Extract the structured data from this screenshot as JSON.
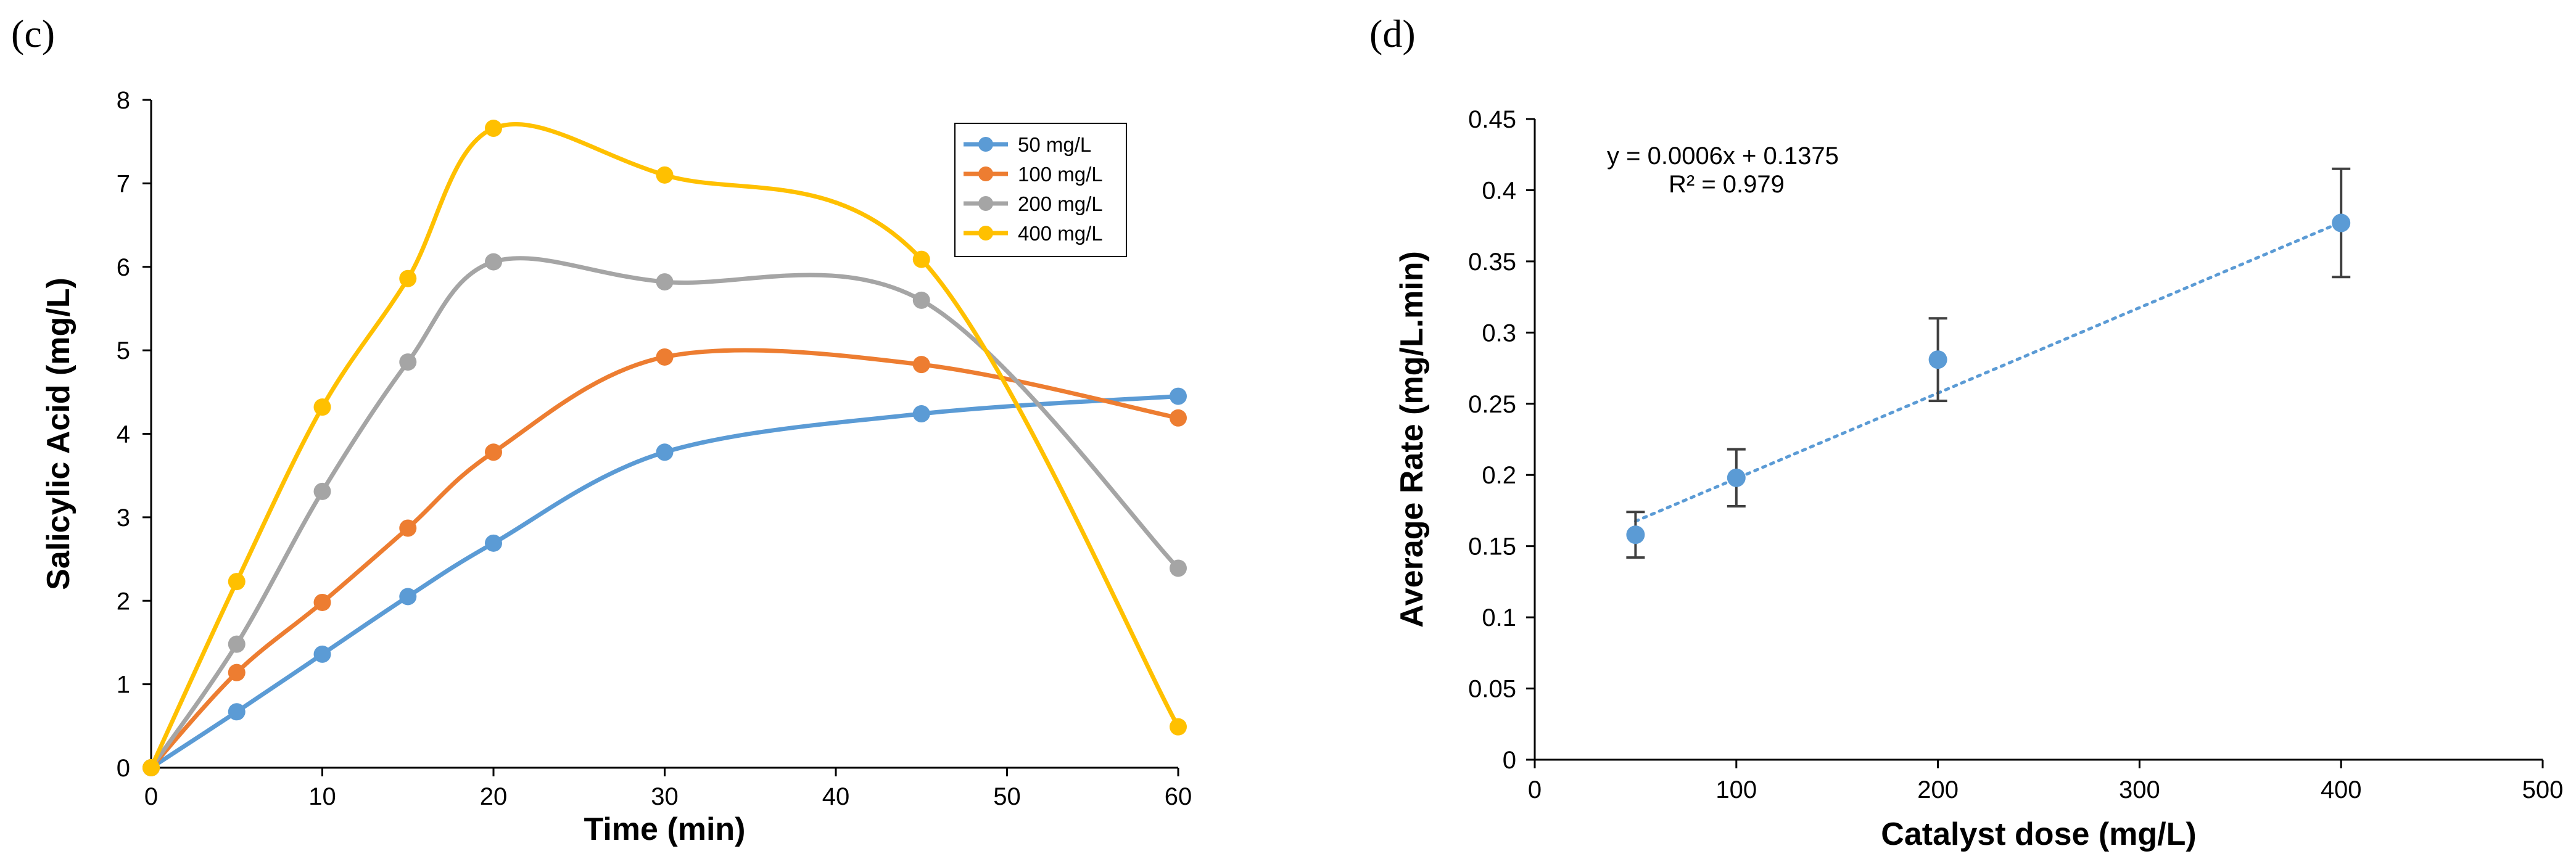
{
  "panels": {
    "c": "(c)",
    "d": "(d)"
  },
  "chart_data": [
    {
      "type": "line",
      "title": "",
      "xlabel": "Time (min)",
      "ylabel": "Salicylic Acid (mg/L)",
      "xlim": [
        0,
        60
      ],
      "ylim": [
        0,
        8
      ],
      "xticks": [
        0,
        10,
        20,
        30,
        40,
        50,
        60
      ],
      "yticks": [
        0,
        1,
        2,
        3,
        4,
        5,
        6,
        7,
        8
      ],
      "x": [
        0,
        5,
        10,
        15,
        20,
        30,
        45,
        60
      ],
      "legend_position": "top-right",
      "series": [
        {
          "name": "50 mg/L",
          "color": "#5B9BD5",
          "values": [
            0,
            0.67,
            1.36,
            2.05,
            2.69,
            3.78,
            4.24,
            4.45
          ]
        },
        {
          "name": "100 mg/L",
          "color": "#ED7D31",
          "values": [
            0,
            1.14,
            1.98,
            2.87,
            3.78,
            4.92,
            4.83,
            4.19
          ]
        },
        {
          "name": "200 mg/L",
          "color": "#A5A5A5",
          "values": [
            0,
            1.48,
            3.31,
            4.86,
            6.06,
            5.82,
            5.6,
            2.39
          ]
        },
        {
          "name": "400 mg/L",
          "color": "#FFC000",
          "values": [
            0,
            2.23,
            4.32,
            5.86,
            7.66,
            7.1,
            6.09,
            0.49
          ]
        }
      ]
    },
    {
      "type": "scatter",
      "title": "",
      "xlabel": "Catalyst dose (mg/L)",
      "ylabel": "Average Rate (mg/L.min)",
      "xlim": [
        0,
        500
      ],
      "ylim": [
        0,
        0.45
      ],
      "xticks": [
        0,
        100,
        200,
        300,
        400,
        500
      ],
      "yticks": [
        "0",
        "0.05",
        "0.1",
        "0.15",
        "0.2",
        "0.25",
        "0.3",
        "0.35",
        "0.4",
        "0.45"
      ],
      "color": "#5B9BD5",
      "x": [
        50,
        100,
        200,
        400
      ],
      "y": [
        0.158,
        0.198,
        0.281,
        0.377
      ],
      "error": [
        0.016,
        0.02,
        0.029,
        0.038
      ],
      "trendline": {
        "slope": 0.0006,
        "intercept": 0.1375,
        "x_range": [
          50,
          400
        ]
      },
      "equation": "y = 0.0006x + 0.1375",
      "r2": "R² = 0.979"
    }
  ]
}
